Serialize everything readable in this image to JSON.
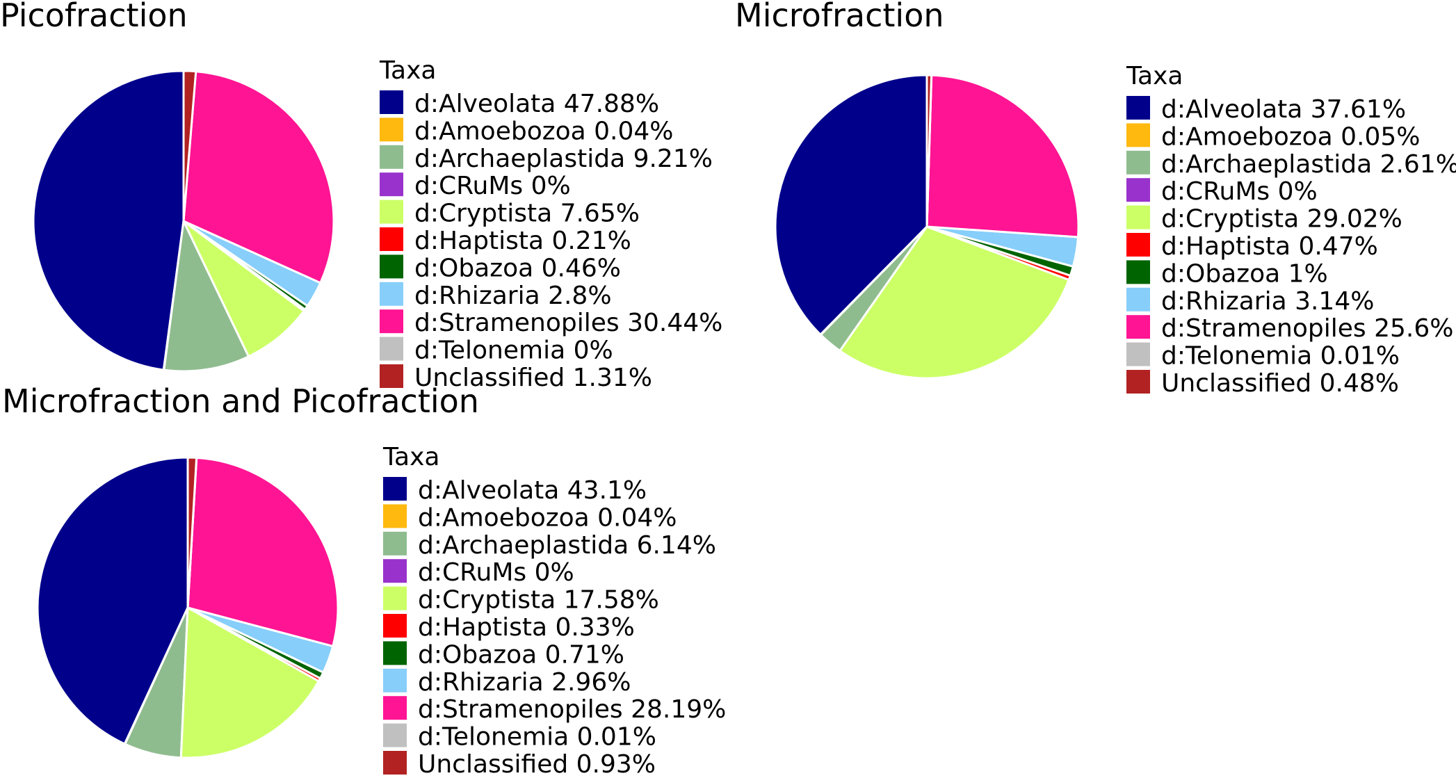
{
  "chart_data": [
    {
      "type": "pie",
      "title": "Picofraction",
      "legend_title": "Taxa",
      "legend_position": "right",
      "slices": [
        {
          "label": "d:Alveolata",
          "value": 47.88,
          "display": "47.88%",
          "color": "#00008B"
        },
        {
          "label": "d:Amoebozoa",
          "value": 0.04,
          "display": "0.04%",
          "color": "#FFB90F"
        },
        {
          "label": "d:Archaeplastida",
          "value": 9.21,
          "display": "9.21%",
          "color": "#8FBC8F"
        },
        {
          "label": "d:CRuMs",
          "value": 0,
          "display": "0%",
          "color": "#9932CC"
        },
        {
          "label": "d:Cryptista",
          "value": 7.65,
          "display": "7.65%",
          "color": "#CCFF66"
        },
        {
          "label": "d:Haptista",
          "value": 0.21,
          "display": "0.21%",
          "color": "#FF0000"
        },
        {
          "label": "d:Obazoa",
          "value": 0.46,
          "display": "0.46%",
          "color": "#006400"
        },
        {
          "label": "d:Rhizaria",
          "value": 2.8,
          "display": "2.8%",
          "color": "#87CEFA"
        },
        {
          "label": "d:Stramenopiles",
          "value": 30.44,
          "display": "30.44%",
          "color": "#FF1493"
        },
        {
          "label": "d:Telonemia",
          "value": 0,
          "display": "0%",
          "color": "#C0C0C0"
        },
        {
          "label": "Unclassified",
          "value": 1.31,
          "display": "1.31%",
          "color": "#B22222"
        }
      ]
    },
    {
      "type": "pie",
      "title": "Microfraction",
      "legend_title": "Taxa",
      "legend_position": "right",
      "slices": [
        {
          "label": "d:Alveolata",
          "value": 37.61,
          "display": "37.61%",
          "color": "#00008B"
        },
        {
          "label": "d:Amoebozoa",
          "value": 0.05,
          "display": "0.05%",
          "color": "#FFB90F"
        },
        {
          "label": "d:Archaeplastida",
          "value": 2.61,
          "display": "2.61%",
          "color": "#8FBC8F"
        },
        {
          "label": "d:CRuMs",
          "value": 0,
          "display": "0%",
          "color": "#9932CC"
        },
        {
          "label": "d:Cryptista",
          "value": 29.02,
          "display": "29.02%",
          "color": "#CCFF66"
        },
        {
          "label": "d:Haptista",
          "value": 0.47,
          "display": "0.47%",
          "color": "#FF0000"
        },
        {
          "label": "d:Obazoa",
          "value": 1,
          "display": "1%",
          "color": "#006400"
        },
        {
          "label": "d:Rhizaria",
          "value": 3.14,
          "display": "3.14%",
          "color": "#87CEFA"
        },
        {
          "label": "d:Stramenopiles",
          "value": 25.6,
          "display": "25.6%",
          "color": "#FF1493"
        },
        {
          "label": "d:Telonemia",
          "value": 0.01,
          "display": "0.01%",
          "color": "#C0C0C0"
        },
        {
          "label": "Unclassified",
          "value": 0.48,
          "display": "0.48%",
          "color": "#B22222"
        }
      ]
    },
    {
      "type": "pie",
      "title": "Microfraction and Picofraction",
      "legend_title": "Taxa",
      "legend_position": "right",
      "slices": [
        {
          "label": "d:Alveolata",
          "value": 43.1,
          "display": "43.1%",
          "color": "#00008B"
        },
        {
          "label": "d:Amoebozoa",
          "value": 0.04,
          "display": "0.04%",
          "color": "#FFB90F"
        },
        {
          "label": "d:Archaeplastida",
          "value": 6.14,
          "display": "6.14%",
          "color": "#8FBC8F"
        },
        {
          "label": "d:CRuMs",
          "value": 0,
          "display": "0%",
          "color": "#9932CC"
        },
        {
          "label": "d:Cryptista",
          "value": 17.58,
          "display": "17.58%",
          "color": "#CCFF66"
        },
        {
          "label": "d:Haptista",
          "value": 0.33,
          "display": "0.33%",
          "color": "#FF0000"
        },
        {
          "label": "d:Obazoa",
          "value": 0.71,
          "display": "0.71%",
          "color": "#006400"
        },
        {
          "label": "d:Rhizaria",
          "value": 2.96,
          "display": "2.96%",
          "color": "#87CEFA"
        },
        {
          "label": "d:Stramenopiles",
          "value": 28.19,
          "display": "28.19%",
          "color": "#FF1493"
        },
        {
          "label": "d:Telonemia",
          "value": 0.01,
          "display": "0.01%",
          "color": "#C0C0C0"
        },
        {
          "label": "Unclassified",
          "value": 0.93,
          "display": "0.93%",
          "color": "#B22222"
        }
      ]
    }
  ]
}
